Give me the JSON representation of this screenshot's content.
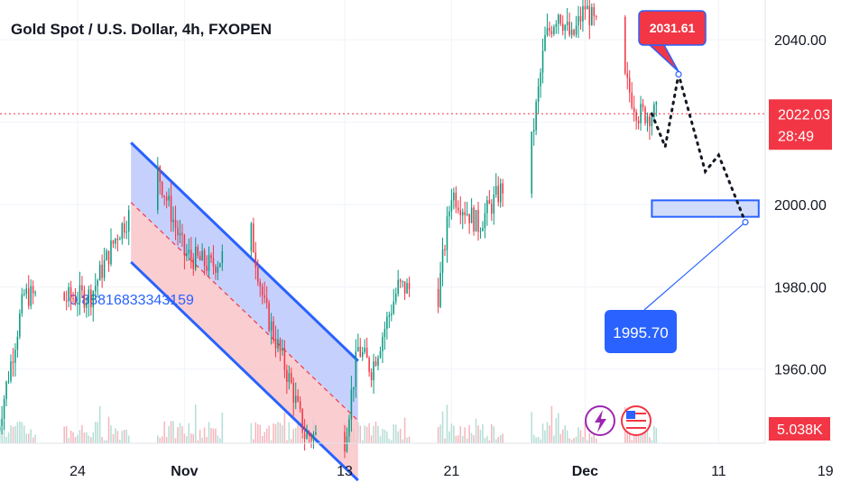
{
  "header": {
    "title": "Gold Spot / U.S. Dollar, 4h, FXOPEN"
  },
  "colors": {
    "up": "#089981",
    "down": "#f23645",
    "channel_line": "#2962ff",
    "channel_upper_fill": "#bcc8fb",
    "channel_lower_fill": "#f9c4c9",
    "grid": "#f0f3fa",
    "text": "#131722",
    "price_line": "#f23645",
    "volume_up": "#b5ded6",
    "volume_down": "#f6b7bd",
    "callout_red": "#f23645",
    "callout_blue": "#2962ff",
    "target_box": "#d1dcfc"
  },
  "chart_data": {
    "type": "candlestick",
    "symbol": "Gold Spot / U.S. Dollar",
    "timeframe": "4h",
    "y_axis": {
      "min": 1942,
      "max": 2050,
      "tick_labels": [
        "2040.00",
        "2000.00",
        "1980.00",
        "1960.00"
      ],
      "ticks": [
        2040,
        2000,
        1980,
        1960
      ]
    },
    "x_axis": {
      "tick_labels": [
        "24",
        "Nov",
        "13",
        "21",
        "Dec",
        "11",
        "19"
      ]
    },
    "anchors": [
      {
        "date": "2023-10-18",
        "price": 1945
      },
      {
        "date": "2023-10-20",
        "price": 1978
      },
      {
        "date": "2023-10-23",
        "price": 1977
      },
      {
        "date": "2023-10-25",
        "price": 1978
      },
      {
        "date": "2023-10-27",
        "price": 1993
      },
      {
        "date": "2023-10-30",
        "price": 2008
      },
      {
        "date": "2023-11-01",
        "price": 1988
      },
      {
        "date": "2023-11-03",
        "price": 1985
      },
      {
        "date": "2023-11-06",
        "price": 1993
      },
      {
        "date": "2023-11-07",
        "price": 1975
      },
      {
        "date": "2023-11-09",
        "price": 1956
      },
      {
        "date": "2023-11-10",
        "price": 1944
      },
      {
        "date": "2023-11-13",
        "price": 1943
      },
      {
        "date": "2023-11-14",
        "price": 1965
      },
      {
        "date": "2023-11-15",
        "price": 1960
      },
      {
        "date": "2023-11-17",
        "price": 1980
      },
      {
        "date": "2023-11-20",
        "price": 1978
      },
      {
        "date": "2023-11-21",
        "price": 2003
      },
      {
        "date": "2023-11-23",
        "price": 1995
      },
      {
        "date": "2023-11-24",
        "price": 2000
      },
      {
        "date": "2023-11-27",
        "price": 2015
      },
      {
        "date": "2023-11-28",
        "price": 2040
      },
      {
        "date": "2023-11-29",
        "price": 2047
      },
      {
        "date": "2023-11-30",
        "price": 2040
      },
      {
        "date": "2023-12-01",
        "price": 2048
      },
      {
        "date": "2023-12-04",
        "price": 2030
      },
      {
        "date": "2023-12-05",
        "price": 2022
      },
      {
        "date": "2023-12-06",
        "price": 2022
      }
    ],
    "last_price": "2022.03",
    "countdown": "28:49",
    "volume_label": "5.038K",
    "channel_label": "0.888168333431",
    "channel_label_suffix": "59",
    "projection": [
      {
        "date": "2023-12-06",
        "price": 2022
      },
      {
        "date": "2023-12-07",
        "price": 2014
      },
      {
        "date": "2023-12-08",
        "price": 2031.61
      },
      {
        "date": "2023-12-10",
        "price": 2008
      },
      {
        "date": "2023-12-11",
        "price": 2012
      },
      {
        "date": "2023-12-13",
        "price": 1995.7
      }
    ],
    "callouts": {
      "upper": "2031.61",
      "lower": "1995.70"
    },
    "target_zone": {
      "start": "2023-12-06",
      "end": "2023-12-14",
      "from": 1997,
      "to": 2001
    }
  }
}
